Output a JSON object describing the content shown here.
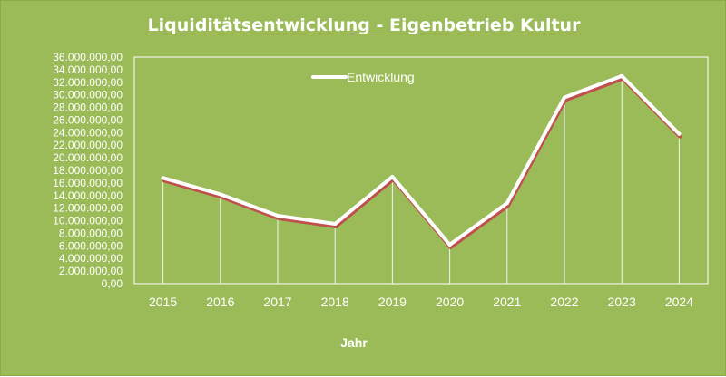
{
  "chart_data": {
    "type": "line",
    "title": "Liquiditätsentwicklung - Eigenbetrieb Kultur",
    "xlabel": "Jahr",
    "ylabel": "",
    "x": [
      "2015",
      "2016",
      "2017",
      "2018",
      "2019",
      "2020",
      "2021",
      "2022",
      "2023",
      "2024"
    ],
    "series": [
      {
        "name": "Entwicklung",
        "values": [
          16800000,
          14200000,
          10800000,
          9500000,
          17000000,
          6200000,
          12800000,
          29600000,
          33000000,
          23800000
        ]
      }
    ],
    "ylim": [
      0,
      36000000
    ],
    "y_tick_step": 2000000,
    "y_tick_labels": [
      "0,00",
      "2.000.000,00",
      "4.000.000,00",
      "6.000.000,00",
      "8.000.000,00",
      "10.000.000,00",
      "12.000.000,00",
      "14.000.000,00",
      "16.000.000,00",
      "18.000.000,00",
      "20.000.000,00",
      "22.000.000,00",
      "24.000.000,00",
      "26.000.000,00",
      "28.000.000,00",
      "30.000.000,00",
      "32.000.000,00",
      "34.000.000,00",
      "36.000.000,00"
    ],
    "drop_lines": true,
    "grid": false,
    "legend_position": "top-center",
    "colors": {
      "background": "#9bbb59",
      "line": "#ffffff",
      "line_shadow": "#c0504d",
      "text": "#ffffff"
    }
  }
}
